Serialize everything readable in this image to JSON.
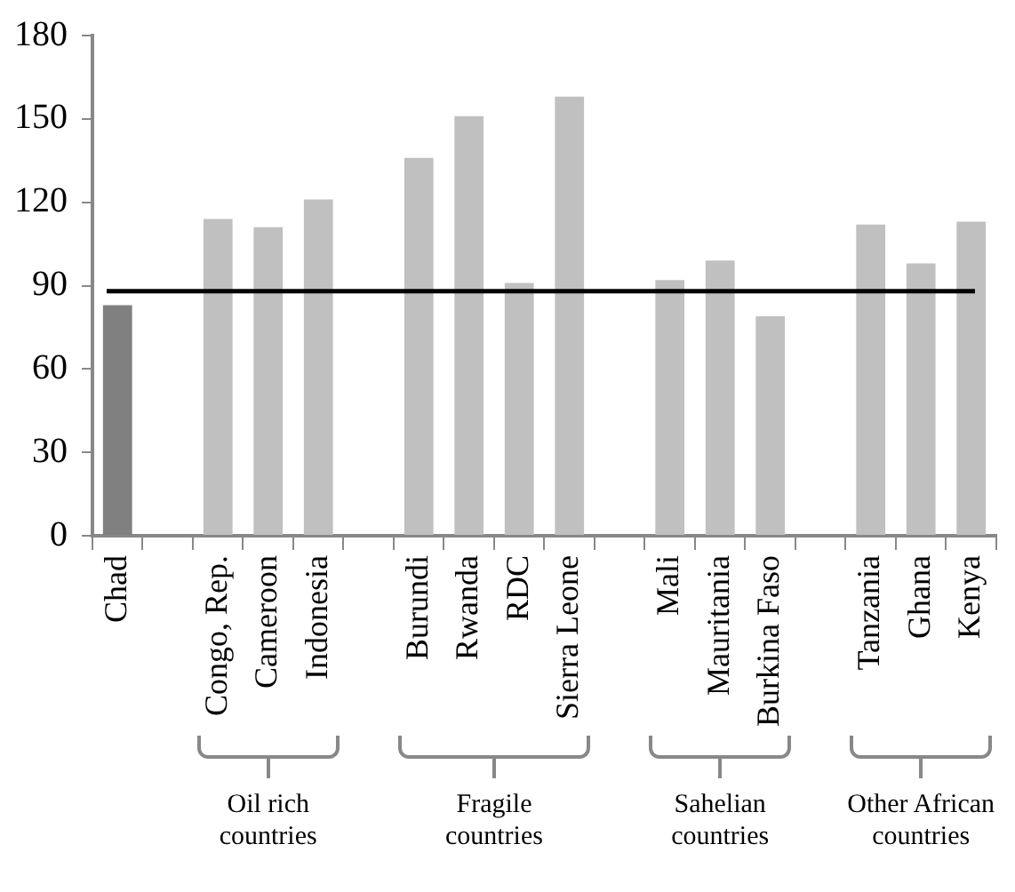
{
  "chart_data": {
    "type": "bar",
    "categories": [
      "Chad",
      null,
      "Congo, Rep.",
      "Cameroon",
      "Indonesia",
      null,
      "Burundi",
      "Rwanda",
      "RDC",
      "Sierra Leone",
      null,
      "Mali",
      "Mauritania",
      "Burkina Faso",
      null,
      "Tanzania",
      "Ghana",
      "Kenya"
    ],
    "values": [
      83,
      null,
      114,
      111,
      121,
      null,
      136,
      151,
      91,
      158,
      null,
      92,
      99,
      79,
      null,
      112,
      98,
      113
    ],
    "colors": [
      "#808080",
      "#c0c0c0",
      "#c0c0c0",
      "#c0c0c0",
      "#c0c0c0",
      "#c0c0c0",
      "#c0c0c0",
      "#c0c0c0",
      "#c0c0c0",
      "#c0c0c0",
      "#c0c0c0",
      "#c0c0c0",
      "#c0c0c0",
      "#c0c0c0",
      "#c0c0c0",
      "#c0c0c0",
      "#c0c0c0",
      "#c0c0c0"
    ],
    "ylim": [
      0,
      180
    ],
    "yticks": [
      0,
      30,
      60,
      90,
      120,
      150,
      180
    ],
    "ref_lines": [
      {
        "axis": "y",
        "value": 88,
        "color": "#000000"
      }
    ],
    "annotations": [
      "Oil rich countries",
      "Fragile countries",
      "Sahelian countries",
      "Other African countries"
    ],
    "grid": false,
    "legend": false
  }
}
